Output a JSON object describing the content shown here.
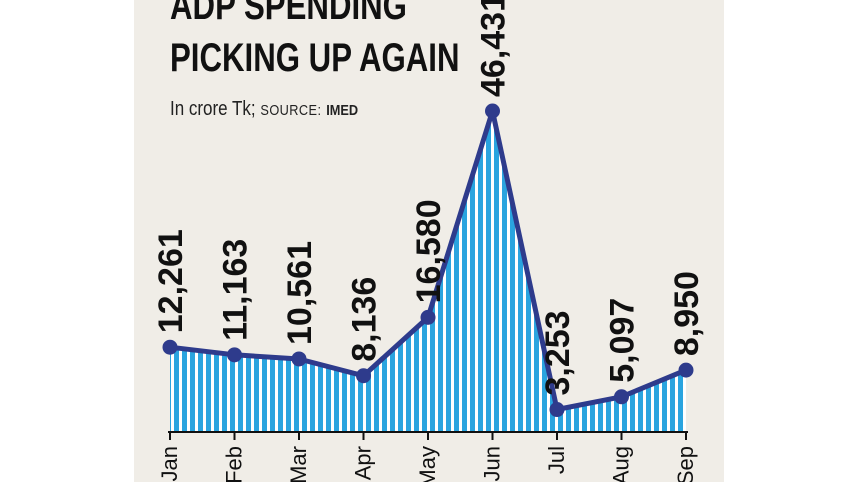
{
  "header": {
    "title_line1": "ADP SPENDING",
    "title_line2": "PICKING UP AGAIN",
    "unit": "In crore Tk;",
    "source_label": "SOURCE:",
    "source_name": "IMED"
  },
  "colors": {
    "panel_bg": "#f0ede7",
    "area_fill": "#2aa4df",
    "line": "#2e3b8c",
    "text": "#111111"
  },
  "chart_data": {
    "type": "area",
    "title": "ADP SPENDING PICKING UP AGAIN",
    "subtitle": "In crore Tk; SOURCE: IMED",
    "categories": [
      "Jan",
      "Feb",
      "Mar",
      "Apr",
      "May",
      "Jun",
      "Jul",
      "Aug",
      "Sep"
    ],
    "values": [
      12261,
      11163,
      10561,
      8136,
      16580,
      46431,
      3253,
      5097,
      8950
    ],
    "data_labels": [
      "12,261",
      "11,163",
      "10,561",
      "8,136",
      "16,580",
      "46,431",
      "3,253",
      "5,097",
      "8,950"
    ],
    "ylim": [
      0,
      49000
    ],
    "grid": false,
    "legend": "none"
  }
}
